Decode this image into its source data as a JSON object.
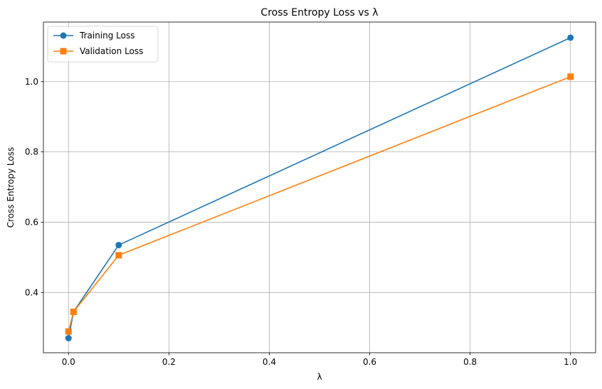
{
  "chart_data": {
    "type": "line",
    "title": "Cross Entropy Loss vs λ",
    "xlabel": "λ",
    "ylabel": "Cross Entropy Loss",
    "xlim": [
      -0.05,
      1.05
    ],
    "ylim": [
      0.2286,
      1.1695
    ],
    "xticks": [
      0.0,
      0.2,
      0.4,
      0.6,
      0.8,
      1.0
    ],
    "yticks": [
      0.4,
      0.6,
      0.8,
      1.0
    ],
    "xtick_labels": [
      "0.0",
      "0.2",
      "0.4",
      "0.6",
      "0.8",
      "1.0"
    ],
    "ytick_labels": [
      "0.4",
      "0.6",
      "0.8",
      "1.0"
    ],
    "grid": true,
    "legend_position": "top-left",
    "x": [
      0.0,
      0.01,
      0.1,
      1.0
    ],
    "series": [
      {
        "name": "Training Loss",
        "marker": "circle",
        "color": "#1f77b4",
        "values": [
          0.27,
          0.345,
          0.535,
          1.125
        ]
      },
      {
        "name": "Validation Loss",
        "marker": "square",
        "color": "#ff7f0e",
        "values": [
          0.289,
          0.345,
          0.506,
          1.014
        ]
      }
    ]
  }
}
